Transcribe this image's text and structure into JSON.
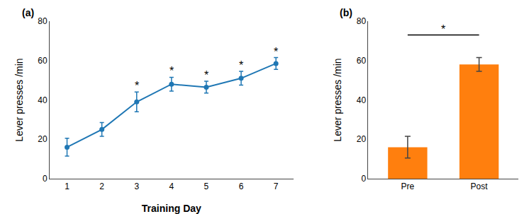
{
  "chart_data": [
    {
      "type": "line",
      "title": "(a)",
      "x": [
        1,
        2,
        3,
        4,
        5,
        6,
        7
      ],
      "values": [
        16,
        25,
        39,
        48,
        46.5,
        51,
        58.5
      ],
      "yerr": [
        4.5,
        3.5,
        5,
        3.5,
        3,
        3.5,
        3
      ],
      "xlabel": "Training Day",
      "ylabel": "Lever presses /min",
      "xlim": [
        0.5,
        7.5
      ],
      "xticks": [
        1,
        2,
        3,
        4,
        5,
        6,
        7
      ],
      "ylim": [
        0,
        80
      ],
      "yticks": [
        0,
        20,
        40,
        60,
        80
      ],
      "marker": "circle",
      "grid": false,
      "annotations": [
        {
          "text": "*",
          "x": 3
        },
        {
          "text": "*",
          "x": 4
        },
        {
          "text": "*",
          "x": 5
        },
        {
          "text": "*",
          "x": 6
        },
        {
          "text": "*",
          "x": 7
        }
      ]
    },
    {
      "type": "bar",
      "title": "(b)",
      "categories": [
        "Pre",
        "Post"
      ],
      "values": [
        16,
        58
      ],
      "yerr": [
        5.5,
        3.5
      ],
      "ylabel": "Lever presses /min",
      "ylim": [
        0,
        80
      ],
      "yticks": [
        0,
        20,
        40,
        60,
        80
      ],
      "grid": false,
      "annotations": [
        {
          "text": "*",
          "from": "Pre",
          "to": "Post",
          "y": 73
        }
      ]
    }
  ]
}
